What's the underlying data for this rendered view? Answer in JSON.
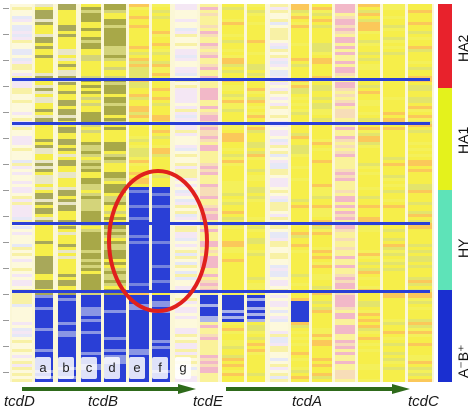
{
  "column_letters": [
    "a",
    "b",
    "c",
    "d",
    "e",
    "f",
    "g"
  ],
  "gene_labels": {
    "tcdD": "tcdD",
    "tcdB": "tcdB",
    "tcdE": "tcdE",
    "tcdA": "tcdA",
    "tcdC": "tcdC"
  },
  "groups": [
    {
      "name": "HA2",
      "color": "#e8222c"
    },
    {
      "name": "HA1",
      "color": "#e4f21c"
    },
    {
      "name": "HY",
      "color": "#5ee3b8"
    },
    {
      "name": "A⁻B⁺",
      "color": "#1a2fd0"
    }
  ],
  "colors": {
    "highlight_circle": "#e0201c",
    "gene_arrow": "#2e6a1a",
    "yellow": "#f6ee4a",
    "blue": "#2a3fd6",
    "pink": "#f2b8c8",
    "olive": "#a8a848"
  }
}
